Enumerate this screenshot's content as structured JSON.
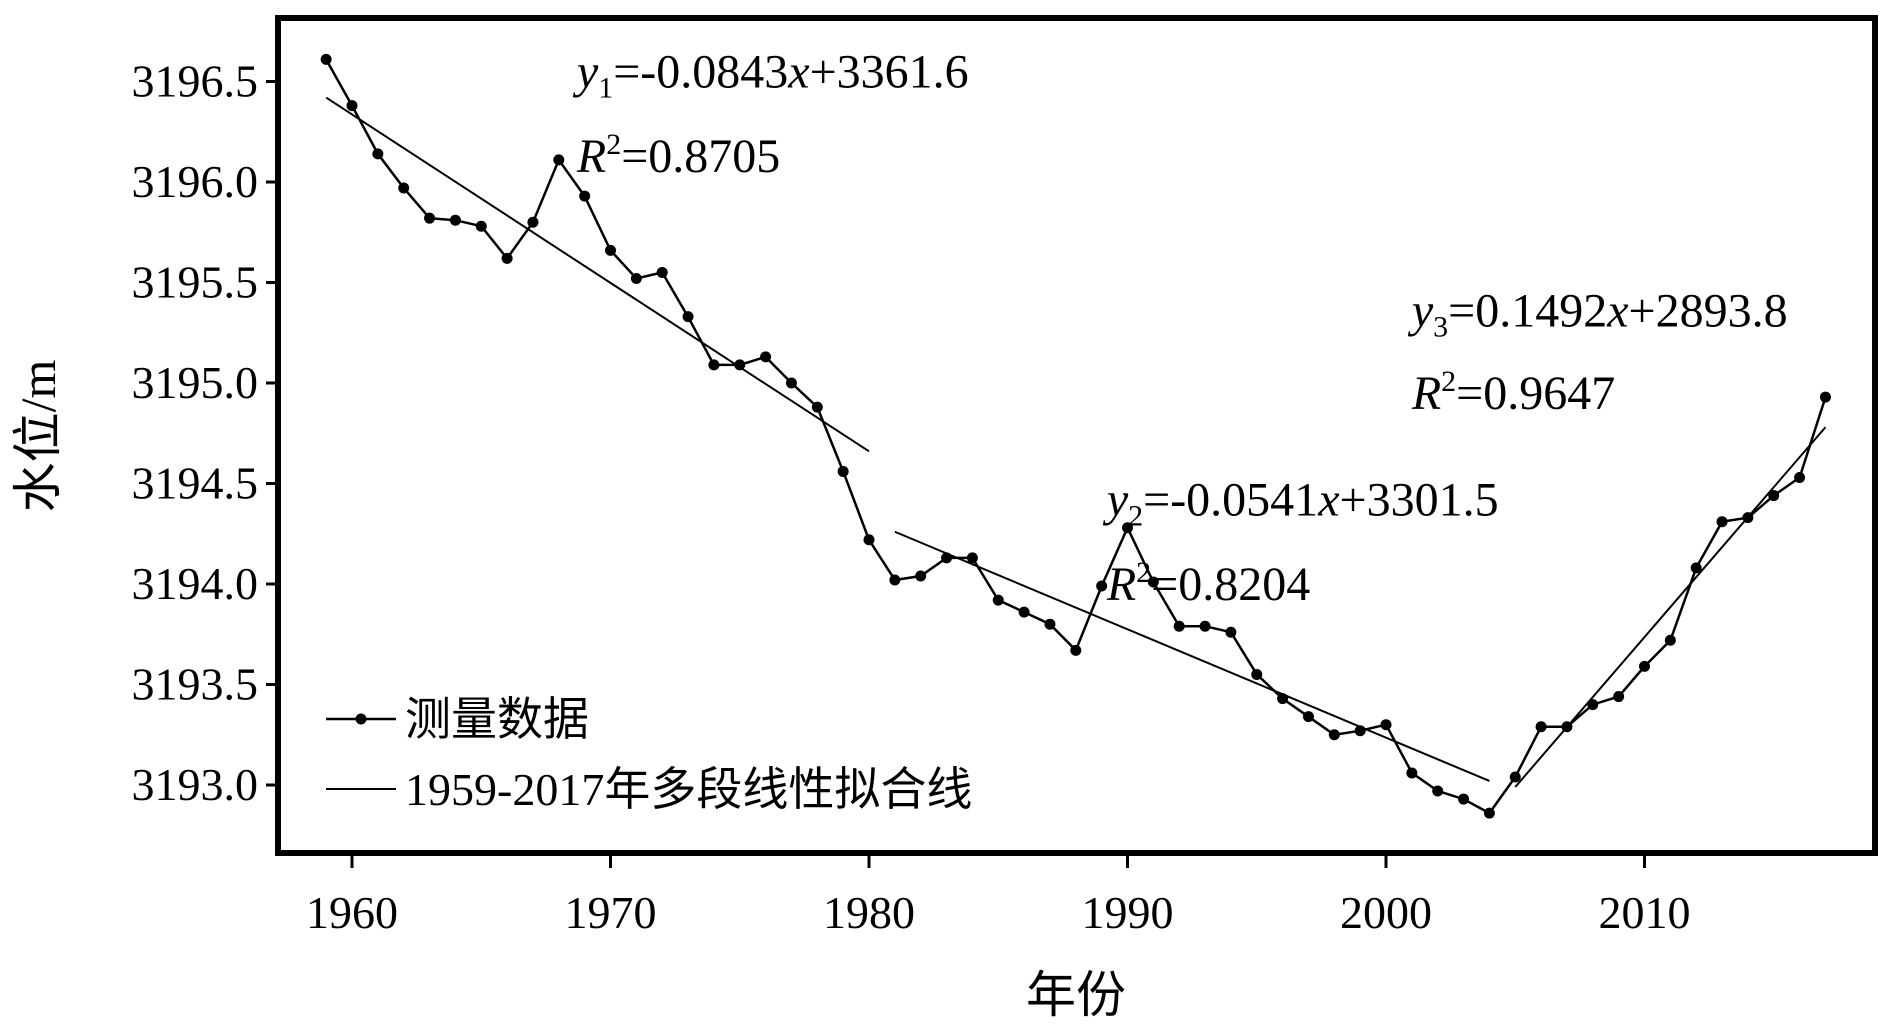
{
  "chart_data": {
    "type": "line",
    "xlabel": "年份",
    "ylabel": "水位/m",
    "xlim": [
      1958,
      2018
    ],
    "ylim": [
      3192.75,
      3196.75
    ],
    "xticks": [
      1960,
      1970,
      1980,
      1990,
      2000,
      2010
    ],
    "yticks": [
      3193.0,
      3193.5,
      3194.0,
      3194.5,
      3195.0,
      3195.5,
      3196.0,
      3196.5
    ],
    "grid": false,
    "legend_position": "bottom-left",
    "series": [
      {
        "name": "测量数据",
        "style": "line-with-markers",
        "color": "#000000",
        "x": [
          1959,
          1960,
          1961,
          1962,
          1963,
          1964,
          1965,
          1966,
          1967,
          1968,
          1969,
          1970,
          1971,
          1972,
          1973,
          1974,
          1975,
          1976,
          1977,
          1978,
          1979,
          1980,
          1981,
          1982,
          1983,
          1984,
          1985,
          1986,
          1987,
          1988,
          1989,
          1990,
          1991,
          1992,
          1993,
          1994,
          1995,
          1996,
          1997,
          1998,
          1999,
          2000,
          2001,
          2002,
          2003,
          2004,
          2005,
          2006,
          2007,
          2008,
          2009,
          2010,
          2011,
          2012,
          2013,
          2014,
          2015,
          2016,
          2017
        ],
        "y": [
          3196.61,
          3196.38,
          3196.14,
          3195.97,
          3195.82,
          3195.81,
          3195.78,
          3195.62,
          3195.8,
          3196.11,
          3195.93,
          3195.66,
          3195.52,
          3195.55,
          3195.33,
          3195.09,
          3195.09,
          3195.13,
          3195.0,
          3194.88,
          3194.56,
          3194.22,
          3194.02,
          3194.04,
          3194.13,
          3194.13,
          3193.92,
          3193.86,
          3193.8,
          3193.67,
          3193.99,
          3194.28,
          3194.01,
          3193.79,
          3193.79,
          3193.76,
          3193.55,
          3193.43,
          3193.34,
          3193.25,
          3193.27,
          3193.3,
          3193.06,
          3192.97,
          3192.93,
          3192.86,
          3193.04,
          3193.29,
          3193.29,
          3193.4,
          3193.44,
          3193.59,
          3193.72,
          3194.08,
          3194.31,
          3194.33,
          3194.44,
          3194.53,
          3194.93
        ]
      },
      {
        "name": "1959-2017年多段线性拟合线",
        "style": "line",
        "color": "#000000",
        "segments": [
          {
            "x": [
              1959,
              1980
            ],
            "y": [
              3196.42,
              3194.66
            ],
            "equation": "-0.0843x+3361.6",
            "r2": "0.8705"
          },
          {
            "x": [
              1981,
              2004
            ],
            "y": [
              3194.26,
              3193.02
            ],
            "equation": "-0.0541x+3301.5",
            "r2": "0.8204"
          },
          {
            "x": [
              2005,
              2017
            ],
            "y": [
              3192.99,
              3194.78
            ],
            "equation": "0.1492x+2893.8",
            "r2": "0.9647"
          }
        ]
      }
    ],
    "annotations": [
      {
        "var": "y",
        "sub": "1",
        "rhs": "=-0.0843",
        "x_sym": "x",
        "tail": "+3361.6",
        "r_sym": "R",
        "sup": "2",
        "r_rhs": "=0.8705",
        "anchor": [
          1968.7,
          3196.47
        ],
        "anchor_r2": [
          1968.7,
          3196.05
        ]
      },
      {
        "var": "y",
        "sub": "2",
        "rhs": "=-0.0541",
        "x_sym": "x",
        "tail": "+3301.5",
        "r_sym": "R",
        "sup": "2",
        "r_rhs": "=0.8204",
        "anchor": [
          1989.2,
          3194.34
        ],
        "anchor_r2": [
          1989.2,
          3193.92
        ]
      },
      {
        "var": "y",
        "sub": "3",
        "rhs": "=0.1492",
        "x_sym": "x",
        "tail": "+2893.8",
        "r_sym": "R",
        "sup": "2",
        "r_rhs": "=0.9647",
        "anchor": [
          2001.0,
          3195.28
        ],
        "anchor_r2": [
          2001.0,
          3194.87
        ]
      }
    ]
  }
}
